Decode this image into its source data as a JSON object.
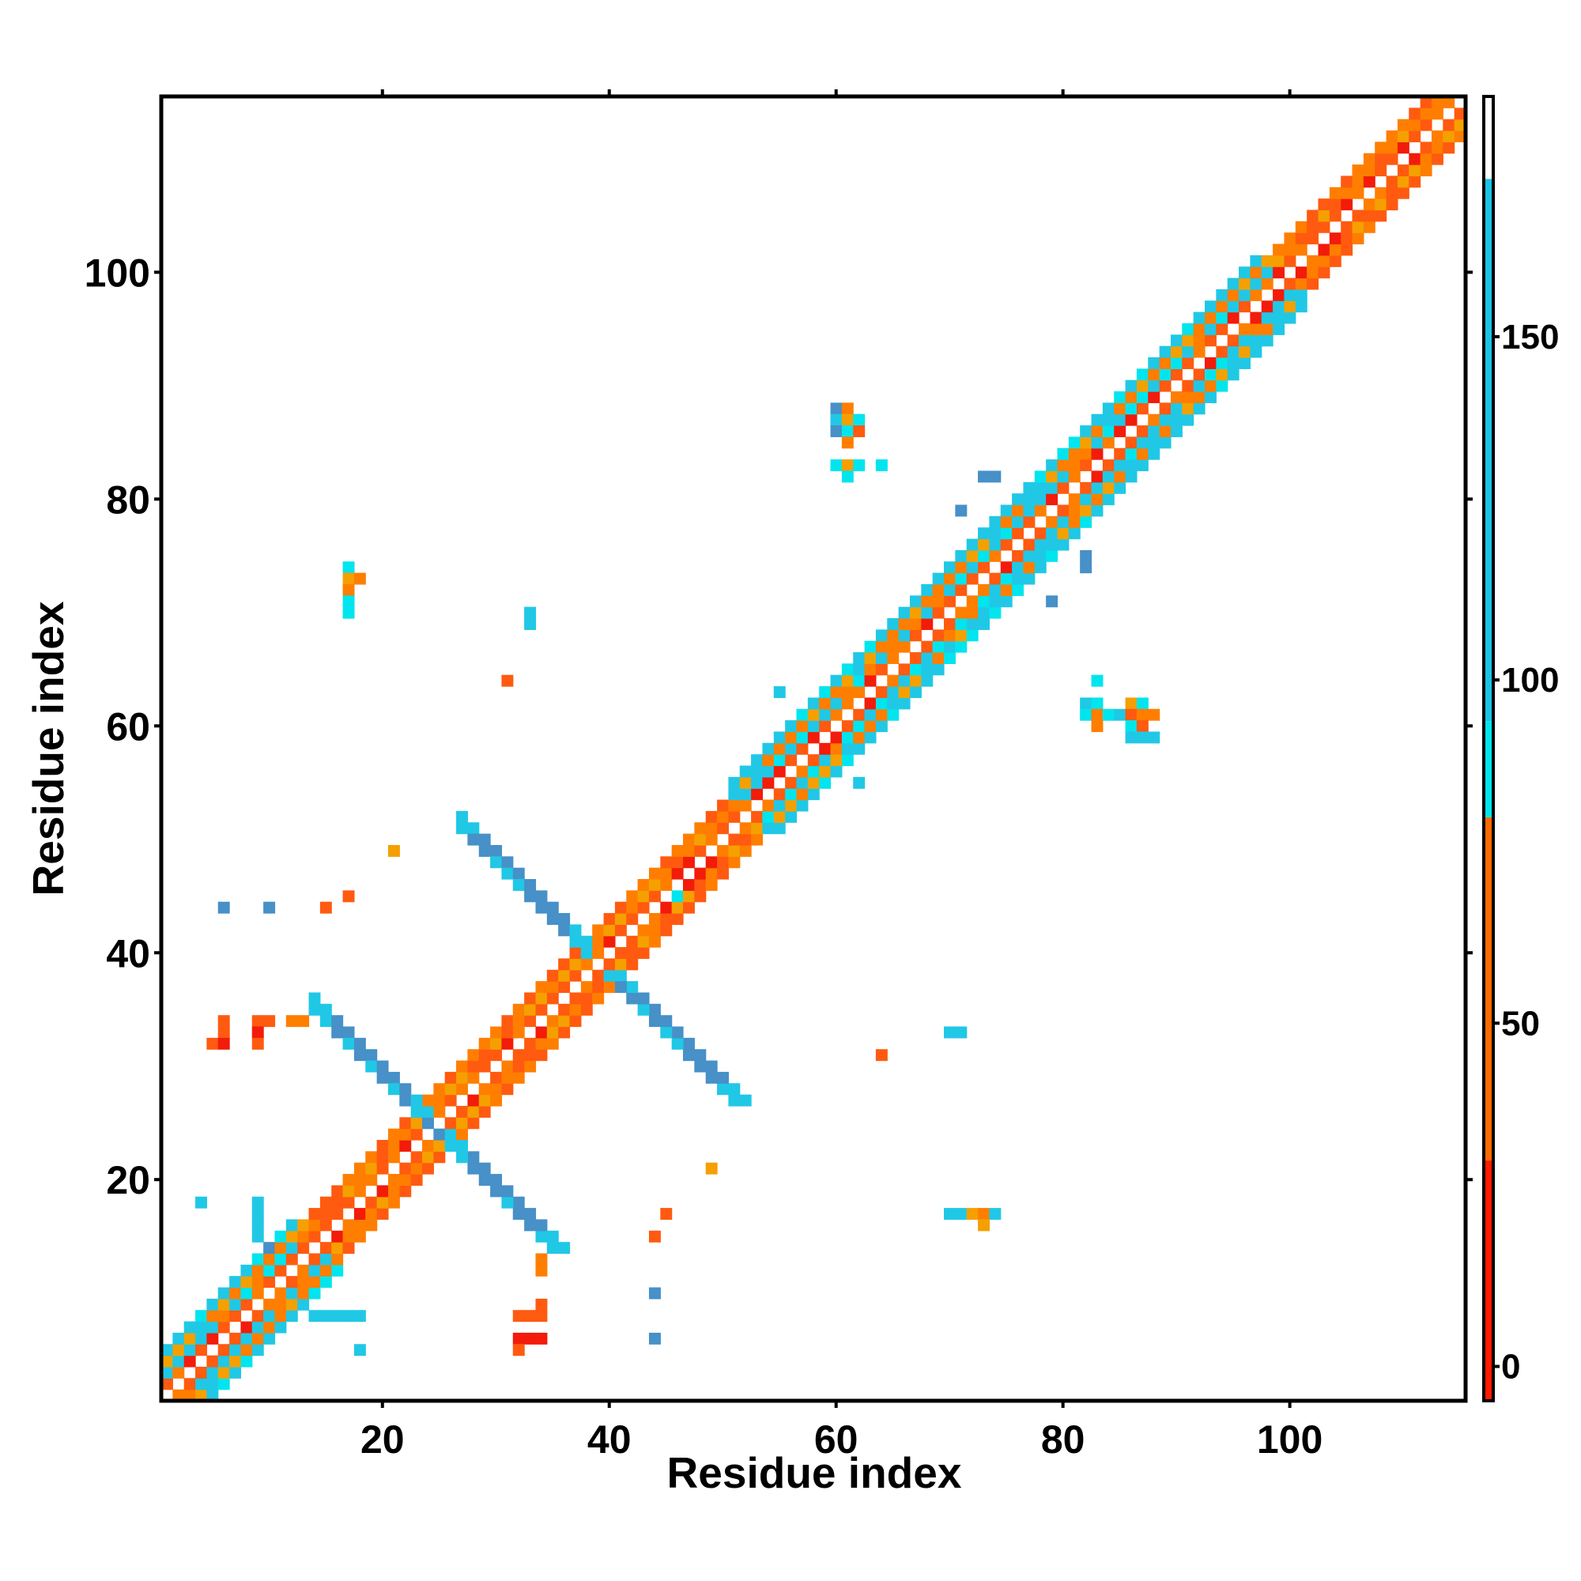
{
  "chart_data": {
    "type": "heatmap",
    "title": "",
    "xlabel": "Residue index",
    "ylabel": "Residue index",
    "xlim": [
      1,
      115
    ],
    "ylim": [
      1,
      115
    ],
    "x_ticks": [
      20,
      40,
      60,
      80,
      100
    ],
    "y_ticks": [
      20,
      40,
      60,
      80,
      100
    ],
    "grid": false,
    "colorbar": {
      "range": [
        -5,
        185
      ],
      "ticks": [
        0,
        50,
        100,
        150
      ],
      "segments": [
        {
          "from": -5,
          "to": 30,
          "color": "#ff1a00"
        },
        {
          "from": 30,
          "to": 80,
          "color": "#ff6a00"
        },
        {
          "from": 80,
          "to": 94,
          "color": "#00e5ee"
        },
        {
          "from": 94,
          "to": 173,
          "color": "#19c3e6"
        },
        {
          "from": 173,
          "to": 185,
          "color": "#ffffff"
        }
      ]
    },
    "colors": {
      "red": "#f31b0a",
      "orange_red": "#ff5a10",
      "orange": "#ff7e00",
      "amber": "#f5a000",
      "cyan": "#00e5ee",
      "light_blue": "#20c8e6",
      "steel_blue": "#4790c8"
    },
    "cells": [
      [
        45,
        46,
        "orange"
      ],
      [
        46,
        45,
        "cyan"
      ],
      [
        46,
        47,
        "red"
      ],
      [
        47,
        46,
        "red"
      ],
      [
        17,
        74,
        "cyan"
      ],
      [
        17,
        73,
        "amber"
      ],
      [
        18,
        73,
        "orange"
      ],
      [
        17,
        72,
        "orange"
      ],
      [
        17,
        71,
        "cyan"
      ],
      [
        17,
        70,
        "cyan"
      ],
      [
        33,
        70,
        "light_blue"
      ],
      [
        33,
        69,
        "light_blue"
      ],
      [
        31,
        64,
        "orange_red"
      ],
      [
        21,
        49,
        "amber"
      ],
      [
        6,
        44,
        "steel_blue"
      ],
      [
        10,
        44,
        "steel_blue"
      ],
      [
        15,
        44,
        "orange_red"
      ],
      [
        17,
        45,
        "orange_red"
      ],
      [
        6,
        34,
        "orange_red"
      ],
      [
        6,
        33,
        "orange_red"
      ],
      [
        5,
        32,
        "orange_red"
      ],
      [
        6,
        32,
        "red"
      ],
      [
        9,
        34,
        "orange_red"
      ],
      [
        10,
        34,
        "orange_red"
      ],
      [
        9,
        33,
        "red"
      ],
      [
        9,
        32,
        "orange_red"
      ],
      [
        12,
        34,
        "orange"
      ],
      [
        13,
        34,
        "orange"
      ],
      [
        4,
        18,
        "light_blue"
      ],
      [
        9,
        18,
        "light_blue"
      ],
      [
        9,
        17,
        "light_blue"
      ],
      [
        9,
        16,
        "light_blue"
      ],
      [
        9,
        15,
        "light_blue"
      ],
      [
        10,
        14,
        "steel_blue"
      ],
      [
        14,
        8,
        "light_blue"
      ],
      [
        15,
        8,
        "light_blue"
      ],
      [
        16,
        8,
        "light_blue"
      ],
      [
        17,
        8,
        "light_blue"
      ],
      [
        18,
        8,
        "light_blue"
      ],
      [
        18,
        5,
        "light_blue"
      ],
      [
        34,
        13,
        "orange"
      ],
      [
        34,
        12,
        "orange"
      ],
      [
        34,
        9,
        "orange_red"
      ],
      [
        32,
        8,
        "orange_red"
      ],
      [
        33,
        8,
        "orange_red"
      ],
      [
        34,
        8,
        "orange_red"
      ],
      [
        32,
        6,
        "red"
      ],
      [
        33,
        6,
        "red"
      ],
      [
        34,
        6,
        "red"
      ],
      [
        32,
        5,
        "orange_red"
      ],
      [
        45,
        17,
        "orange_red"
      ],
      [
        44,
        15,
        "orange_red"
      ],
      [
        44,
        10,
        "steel_blue"
      ],
      [
        44,
        6,
        "steel_blue"
      ],
      [
        49,
        21,
        "amber"
      ],
      [
        70,
        17,
        "light_blue"
      ],
      [
        71,
        17,
        "light_blue"
      ],
      [
        72,
        17,
        "amber"
      ],
      [
        73,
        17,
        "orange"
      ],
      [
        74,
        17,
        "light_blue"
      ],
      [
        73,
        16,
        "amber"
      ],
      [
        64,
        31,
        "orange_red"
      ],
      [
        70,
        33,
        "light_blue"
      ],
      [
        71,
        33,
        "light_blue"
      ],
      [
        60,
        88,
        "steel_blue"
      ],
      [
        61,
        88,
        "orange"
      ],
      [
        60,
        87,
        "light_blue"
      ],
      [
        61,
        87,
        "amber"
      ],
      [
        62,
        87,
        "cyan"
      ],
      [
        60,
        86,
        "steel_blue"
      ],
      [
        61,
        86,
        "cyan"
      ],
      [
        62,
        86,
        "orange_red"
      ],
      [
        61,
        85,
        "orange"
      ],
      [
        60,
        83,
        "cyan"
      ],
      [
        61,
        83,
        "amber"
      ],
      [
        62,
        83,
        "cyan"
      ],
      [
        64,
        83,
        "cyan"
      ],
      [
        61,
        82,
        "cyan"
      ],
      [
        73,
        82,
        "steel_blue"
      ],
      [
        74,
        82,
        "steel_blue"
      ],
      [
        71,
        79,
        "steel_blue"
      ],
      [
        79,
        71,
        "steel_blue"
      ],
      [
        82,
        75,
        "steel_blue"
      ],
      [
        82,
        74,
        "steel_blue"
      ],
      [
        55,
        63,
        "light_blue"
      ],
      [
        62,
        55,
        "light_blue"
      ],
      [
        83,
        64,
        "cyan"
      ],
      [
        82,
        62,
        "light_blue"
      ],
      [
        83,
        62,
        "cyan"
      ],
      [
        86,
        62,
        "amber"
      ],
      [
        87,
        62,
        "cyan"
      ],
      [
        82,
        61,
        "cyan"
      ],
      [
        83,
        61,
        "orange"
      ],
      [
        84,
        61,
        "cyan"
      ],
      [
        85,
        61,
        "light_blue"
      ],
      [
        86,
        61,
        "orange_red"
      ],
      [
        87,
        61,
        "orange"
      ],
      [
        88,
        61,
        "orange"
      ],
      [
        83,
        60,
        "orange"
      ],
      [
        86,
        60,
        "cyan"
      ],
      [
        87,
        60,
        "orange_red"
      ],
      [
        86,
        59,
        "light_blue"
      ],
      [
        87,
        59,
        "light_blue"
      ],
      [
        88,
        59,
        "light_blue"
      ]
    ]
  }
}
